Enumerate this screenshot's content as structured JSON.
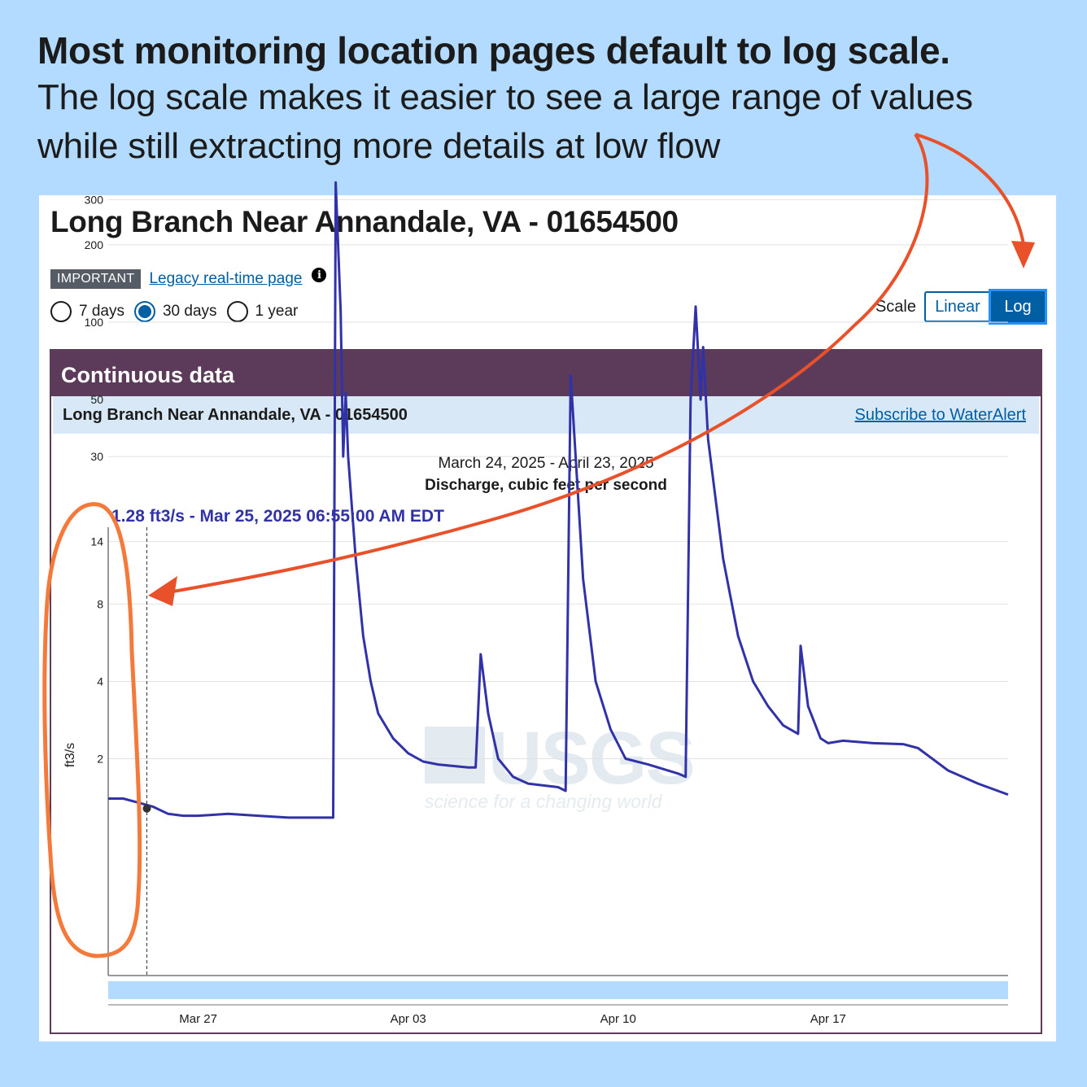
{
  "headline": {
    "bold": "Most monitoring location pages default to log scale.",
    "body_line1": "The log scale makes it easier to see a large range of values",
    "body_line2": "while still extracting more details at low flow"
  },
  "page": {
    "site_title": "Long Branch Near Annandale, VA - 01654500",
    "badge": "IMPORTANT",
    "legacy_link": "Legacy real-time page ",
    "info_icon": "i",
    "periods": [
      {
        "label": "7 days",
        "checked": false
      },
      {
        "label": "30 days",
        "checked": true
      },
      {
        "label": "1 year",
        "checked": false
      }
    ],
    "scale_label": "Scale",
    "scale_linear": "Linear",
    "scale_log": "Log",
    "selected_scale": "Log"
  },
  "panel": {
    "title": "Continuous data",
    "sub_title": "Long Branch Near Annandale, VA - 01654500",
    "subscribe": "Subscribe to WaterAlert"
  },
  "chart_data": {
    "type": "line",
    "title": "March 24, 2025 - April 23, 2025",
    "subtitle": "Discharge, cubic feet per second",
    "tooltip": "1.28 ft3/s - Mar 25, 2025 06:55:00 AM EDT",
    "ylabel": "ft3/s",
    "yscale": "log",
    "y_ticks": [
      2,
      4,
      8,
      14,
      30,
      50,
      100,
      200,
      300
    ],
    "ylim": [
      0.6,
      400
    ],
    "xlim": [
      "2025-03-24",
      "2025-04-23"
    ],
    "x_ticks": [
      {
        "date": "2025-03-27",
        "label": "Mar 27"
      },
      {
        "date": "2025-04-03",
        "label": "Apr 03"
      },
      {
        "date": "2025-04-10",
        "label": "Apr 10"
      },
      {
        "date": "2025-04-17",
        "label": "Apr 17"
      }
    ],
    "grid": true,
    "marker_point": {
      "x": "2025-03-25 06:55",
      "y": 1.28
    },
    "watermark": {
      "logo": "USGS",
      "tagline": "science for a changing world"
    },
    "series": [
      {
        "color": "#3232a8",
        "points": [
          [
            "2025-03-24 00:00",
            1.4
          ],
          [
            "2025-03-24 12:00",
            1.4
          ],
          [
            "2025-03-25 00:00",
            1.35
          ],
          [
            "2025-03-25 12:00",
            1.3
          ],
          [
            "2025-03-26 00:00",
            1.22
          ],
          [
            "2025-03-26 12:00",
            1.2
          ],
          [
            "2025-03-27 00:00",
            1.2
          ],
          [
            "2025-03-28 00:00",
            1.22
          ],
          [
            "2025-03-29 00:00",
            1.2
          ],
          [
            "2025-03-30 00:00",
            1.18
          ],
          [
            "2025-03-31 00:00",
            1.18
          ],
          [
            "2025-03-31 12:00",
            1.18
          ],
          [
            "2025-03-31 14:00",
            350
          ],
          [
            "2025-03-31 18:00",
            110
          ],
          [
            "2025-03-31 20:00",
            30
          ],
          [
            "2025-03-31 22:00",
            53
          ],
          [
            "2025-04-01 00:00",
            30
          ],
          [
            "2025-04-01 06:00",
            12
          ],
          [
            "2025-04-01 12:00",
            6
          ],
          [
            "2025-04-01 18:00",
            4
          ],
          [
            "2025-04-02 00:00",
            3
          ],
          [
            "2025-04-02 12:00",
            2.4
          ],
          [
            "2025-04-03 00:00",
            2.1
          ],
          [
            "2025-04-03 12:00",
            1.95
          ],
          [
            "2025-04-04 00:00",
            1.9
          ],
          [
            "2025-04-05 00:00",
            1.85
          ],
          [
            "2025-04-05 06:00",
            1.85
          ],
          [
            "2025-04-05 10:00",
            5.1
          ],
          [
            "2025-04-05 16:00",
            3.0
          ],
          [
            "2025-04-06 00:00",
            2.0
          ],
          [
            "2025-04-06 12:00",
            1.7
          ],
          [
            "2025-04-07 00:00",
            1.6
          ],
          [
            "2025-04-08 00:00",
            1.55
          ],
          [
            "2025-04-08 06:00",
            1.5
          ],
          [
            "2025-04-08 10:00",
            62
          ],
          [
            "2025-04-08 14:00",
            30
          ],
          [
            "2025-04-08 20:00",
            10
          ],
          [
            "2025-04-09 06:00",
            4
          ],
          [
            "2025-04-09 18:00",
            2.6
          ],
          [
            "2025-04-10 06:00",
            2.0
          ],
          [
            "2025-04-11 00:00",
            1.9
          ],
          [
            "2025-04-12 00:00",
            1.75
          ],
          [
            "2025-04-12 06:00",
            1.7
          ],
          [
            "2025-04-12 10:00",
            50
          ],
          [
            "2025-04-12 14:00",
            115
          ],
          [
            "2025-04-12 18:00",
            50
          ],
          [
            "2025-04-12 20:00",
            80
          ],
          [
            "2025-04-13 00:00",
            35
          ],
          [
            "2025-04-13 12:00",
            12
          ],
          [
            "2025-04-14 00:00",
            6
          ],
          [
            "2025-04-14 12:00",
            4
          ],
          [
            "2025-04-15 00:00",
            3.2
          ],
          [
            "2025-04-15 12:00",
            2.7
          ],
          [
            "2025-04-16 00:00",
            2.5
          ],
          [
            "2025-04-16 02:00",
            5.5
          ],
          [
            "2025-04-16 08:00",
            3.2
          ],
          [
            "2025-04-16 18:00",
            2.4
          ],
          [
            "2025-04-17 00:00",
            2.3
          ],
          [
            "2025-04-17 12:00",
            2.35
          ],
          [
            "2025-04-18 12:00",
            2.3
          ],
          [
            "2025-04-19 12:00",
            2.28
          ],
          [
            "2025-04-20 00:00",
            2.2
          ],
          [
            "2025-04-21 00:00",
            1.8
          ],
          [
            "2025-04-22 00:00",
            1.6
          ],
          [
            "2025-04-23 00:00",
            1.45
          ]
        ]
      }
    ]
  }
}
